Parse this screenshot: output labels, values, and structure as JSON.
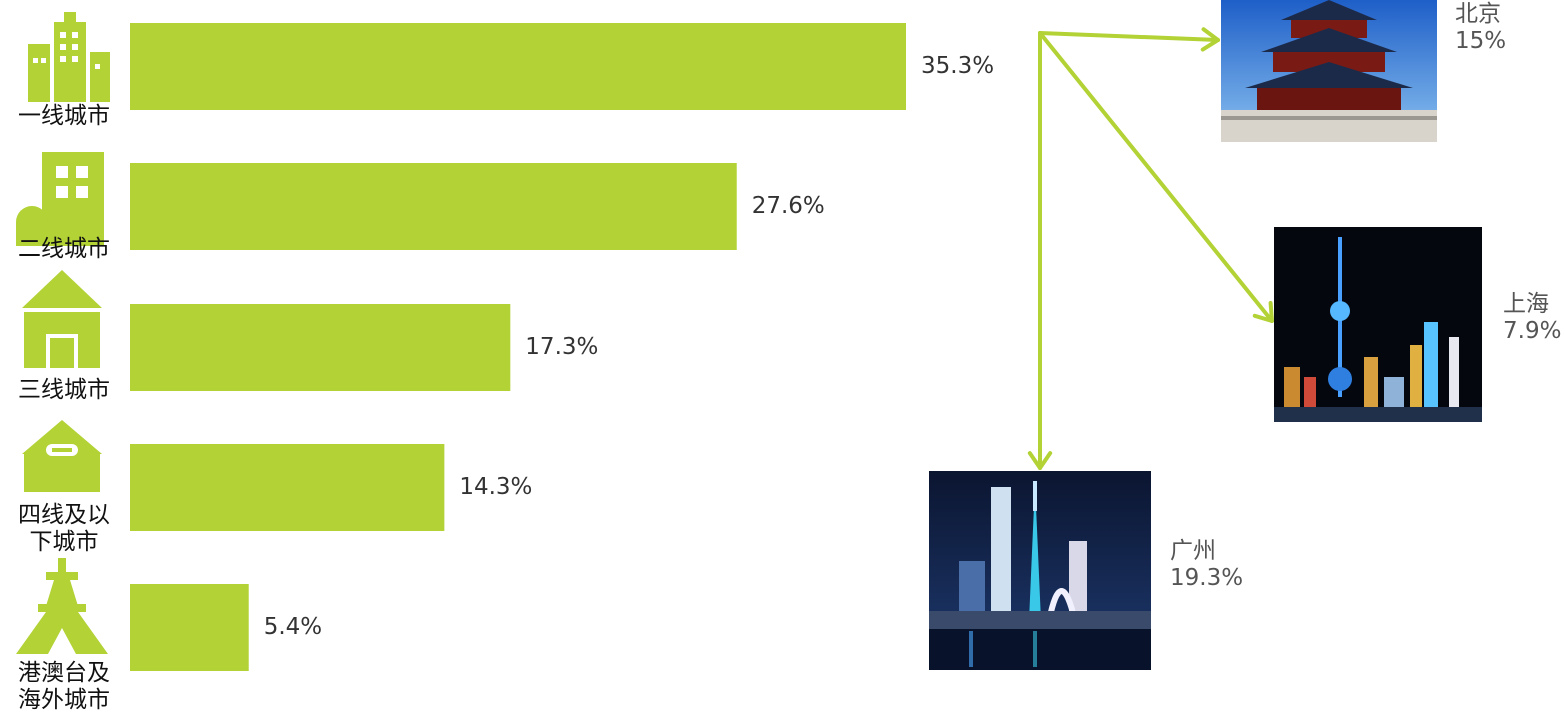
{
  "chart_data": {
    "type": "bar",
    "orientation": "horizontal",
    "categories": [
      "一线城市",
      "二线城市",
      "三线城市",
      "四线及以下城市",
      "港澳台及海外城市"
    ],
    "category_display": [
      "一线城市",
      "二线城市",
      "三线城市",
      "四线及以\n下城市",
      "港澳台及\n海外城市"
    ],
    "values": [
      35.3,
      27.6,
      17.3,
      14.3,
      5.4
    ],
    "value_labels": [
      "35.3%",
      "27.6%",
      "17.3%",
      "14.3%",
      "5.4%"
    ],
    "xlim": [
      0,
      40
    ],
    "grid": false,
    "bar_color": "#b2d235",
    "breakdown": {
      "of": "一线城市",
      "items": [
        {
          "city": "北京",
          "value": 15,
          "label": "15%"
        },
        {
          "city": "上海",
          "value": 7.9,
          "label": "7.9%"
        },
        {
          "city": "广州",
          "value": 19.3,
          "label": "19.3%"
        }
      ]
    }
  },
  "colors": {
    "accent": "#b2d235",
    "arrow": "#b2d235",
    "label_text": "#333333",
    "city_text": "#555555"
  },
  "icons": [
    "office-buildings-icon",
    "building-icon",
    "house-icon",
    "small-house-icon",
    "eiffel-tower-icon"
  ]
}
